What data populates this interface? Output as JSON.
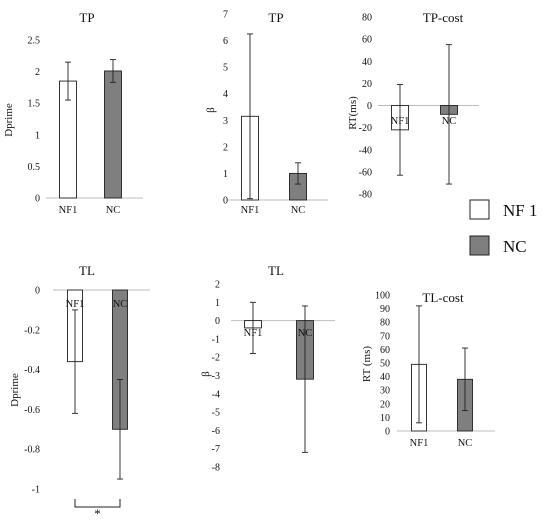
{
  "legend": [
    {
      "name": "NF 1",
      "color": "#ffffff"
    },
    {
      "name": "NC",
      "color": "#7f7f7f"
    }
  ],
  "chart_data": [
    {
      "type": "bar",
      "title": "TP",
      "ylabel": "Dprime",
      "categories": [
        "NF1",
        "NC"
      ],
      "values": [
        1.85,
        2.01
      ],
      "errors": [
        0.3,
        0.18
      ],
      "ylim": [
        0,
        2.5
      ],
      "yticks": [
        "0",
        "0.5",
        "1",
        "1.5",
        "2",
        "2.5"
      ],
      "cat_at_zero": false,
      "annotation": ""
    },
    {
      "type": "bar",
      "title": "TP",
      "ylabel": "β",
      "categories": [
        "NF1",
        "NC"
      ],
      "values": [
        3.15,
        1.0
      ],
      "errors": [
        3.1,
        0.4
      ],
      "ylim": [
        0,
        7
      ],
      "yticks": [
        "0",
        "1",
        "2",
        "3",
        "4",
        "5",
        "6",
        "7"
      ],
      "cat_at_zero": false,
      "annotation": ""
    },
    {
      "type": "bar",
      "title": "TP-cost",
      "ylabel": "RT(ms)",
      "categories": [
        "NF1",
        "NC"
      ],
      "values": [
        -22,
        -8
      ],
      "errors": [
        41,
        63
      ],
      "ylim": [
        -80,
        80
      ],
      "yticks": [
        "-80",
        "-60",
        "-40",
        "-20",
        "0",
        "20",
        "40",
        "60",
        "80"
      ],
      "cat_at_zero": true,
      "annotation": ""
    },
    {
      "type": "bar",
      "title": "TL",
      "ylabel": "Dprime",
      "categories": [
        "NF1",
        "NC"
      ],
      "values": [
        -0.36,
        -0.7
      ],
      "errors": [
        0.26,
        0.25
      ],
      "ylim": [
        -1,
        0
      ],
      "yticks": [
        "-1",
        "-0.8",
        "-0.6",
        "-0.4",
        "-0.2",
        "0"
      ],
      "cat_at_zero": true,
      "annotation": "*"
    },
    {
      "type": "bar",
      "title": "TL",
      "ylabel": "β",
      "categories": [
        "NF1",
        "NC"
      ],
      "values": [
        -0.4,
        -3.2
      ],
      "errors": [
        1.4,
        4.0
      ],
      "ylim": [
        -8,
        2
      ],
      "yticks": [
        "-8",
        "-7",
        "-6",
        "-5",
        "-4",
        "-3",
        "-2",
        "-1",
        "0",
        "1",
        "2"
      ],
      "cat_at_zero": true,
      "annotation": ""
    },
    {
      "type": "bar",
      "title": "TL-cost",
      "ylabel": "RT (ms)",
      "categories": [
        "NF1",
        "NC"
      ],
      "values": [
        49,
        38
      ],
      "errors": [
        43,
        23
      ],
      "ylim": [
        0,
        100
      ],
      "yticks": [
        "0",
        "10",
        "20",
        "30",
        "40",
        "50",
        "60",
        "70",
        "80",
        "90",
        "100"
      ],
      "cat_at_zero": false,
      "annotation": ""
    }
  ]
}
